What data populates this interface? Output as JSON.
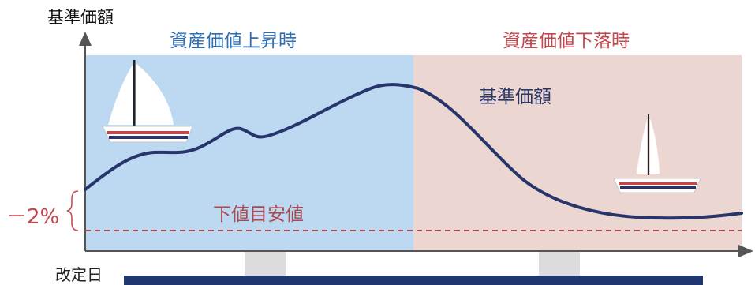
{
  "y_axis_label": "基準価額",
  "zones": {
    "rising": {
      "label": "資産価値上昇時",
      "color": "#bcd9f1"
    },
    "falling": {
      "label": "資産価値下落時",
      "color": "#ecd6d2"
    }
  },
  "curve": {
    "label": "基準価額",
    "color": "#27356b"
  },
  "floor": {
    "label": "下値目安値",
    "color": "#b0464e"
  },
  "threshold": "－2%",
  "x_axis_label": "改定日"
}
